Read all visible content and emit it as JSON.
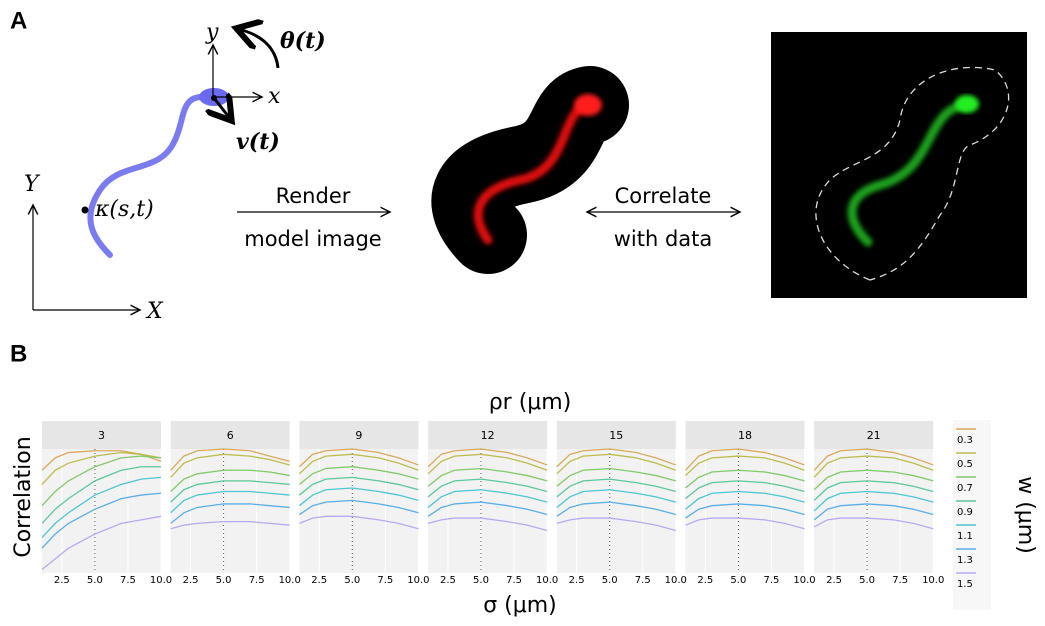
{
  "panel_a": {
    "label": "A",
    "frame_y": "y",
    "frame_x": "x",
    "rotation": "θ(t)",
    "velocity": "v(t)",
    "world_y": "Y",
    "world_x": "X",
    "curvature": "κ(s,t)",
    "render_line1": "Render",
    "render_line2": "model image",
    "correlate_line1": "Correlate",
    "correlate_line2": "with data"
  },
  "chart_data": {
    "type": "line",
    "panel_label": "B",
    "title": "ρr (μm)",
    "y_label": "Correlation",
    "x_label": "σ (μm)",
    "legend_title": "w (μm)",
    "x": [
      1,
      2,
      3,
      5,
      7,
      8.5,
      10
    ],
    "xlim": [
      1,
      10
    ],
    "xticks": [
      2.5,
      {
        "value": 5,
        "label": "5.0"
      },
      7.5,
      {
        "value": 10,
        "label": "10.0"
      }
    ],
    "ylim": [
      0.3,
      1.0
    ],
    "vline": 5,
    "series": [
      {
        "name": "0.3",
        "color": "#d9a95b"
      },
      {
        "name": "0.5",
        "color": "#bcbc4d"
      },
      {
        "name": "0.7",
        "color": "#82c96a"
      },
      {
        "name": "0.9",
        "color": "#5cc79a"
      },
      {
        "name": "1.1",
        "color": "#4cc7d0"
      },
      {
        "name": "1.3",
        "color": "#5aaee6"
      },
      {
        "name": "1.5",
        "color": "#b9a8f0"
      }
    ],
    "facets": [
      {
        "title": "3",
        "series": [
          {
            "values": [
              0.88,
              0.95,
              0.98,
              0.99,
              0.99,
              0.97,
              0.93
            ]
          },
          {
            "values": [
              0.8,
              0.88,
              0.92,
              0.96,
              0.98,
              0.97,
              0.95
            ]
          },
          {
            "values": [
              0.68,
              0.76,
              0.82,
              0.9,
              0.95,
              0.96,
              0.95
            ]
          },
          {
            "values": [
              0.58,
              0.66,
              0.72,
              0.82,
              0.88,
              0.9,
              0.9
            ]
          },
          {
            "values": [
              0.5,
              0.58,
              0.64,
              0.74,
              0.8,
              0.83,
              0.84
            ]
          },
          {
            "values": [
              0.44,
              0.52,
              0.58,
              0.66,
              0.72,
              0.74,
              0.75
            ]
          },
          {
            "values": [
              0.32,
              0.38,
              0.44,
              0.52,
              0.58,
              0.6,
              0.62
            ]
          }
        ]
      },
      {
        "title": "6",
        "series": [
          {
            "values": [
              0.88,
              0.96,
              0.99,
              1.0,
              0.99,
              0.96,
              0.93
            ]
          },
          {
            "values": [
              0.84,
              0.92,
              0.95,
              0.97,
              0.96,
              0.94,
              0.91
            ]
          },
          {
            "values": [
              0.76,
              0.83,
              0.86,
              0.88,
              0.88,
              0.87,
              0.85
            ]
          },
          {
            "values": [
              0.7,
              0.77,
              0.8,
              0.82,
              0.82,
              0.81,
              0.8
            ]
          },
          {
            "values": [
              0.64,
              0.71,
              0.74,
              0.76,
              0.76,
              0.75,
              0.74
            ]
          },
          {
            "values": [
              0.58,
              0.64,
              0.67,
              0.69,
              0.69,
              0.68,
              0.67
            ]
          },
          {
            "values": [
              0.55,
              0.57,
              0.58,
              0.59,
              0.59,
              0.58,
              0.57
            ]
          }
        ]
      },
      {
        "title": "9",
        "series": [
          {
            "values": [
              0.9,
              0.97,
              0.99,
              1.0,
              0.98,
              0.95,
              0.91
            ]
          },
          {
            "values": [
              0.86,
              0.93,
              0.96,
              0.97,
              0.95,
              0.92,
              0.88
            ]
          },
          {
            "values": [
              0.8,
              0.86,
              0.89,
              0.9,
              0.88,
              0.86,
              0.83
            ]
          },
          {
            "values": [
              0.74,
              0.8,
              0.83,
              0.84,
              0.82,
              0.8,
              0.77
            ]
          },
          {
            "values": [
              0.68,
              0.74,
              0.77,
              0.78,
              0.76,
              0.74,
              0.71
            ]
          },
          {
            "values": [
              0.63,
              0.68,
              0.7,
              0.71,
              0.69,
              0.67,
              0.64
            ]
          },
          {
            "values": [
              0.58,
              0.61,
              0.62,
              0.62,
              0.6,
              0.58,
              0.55
            ]
          }
        ]
      },
      {
        "title": "12",
        "series": [
          {
            "values": [
              0.9,
              0.97,
              0.99,
              1.0,
              0.98,
              0.95,
              0.91
            ]
          },
          {
            "values": [
              0.86,
              0.93,
              0.96,
              0.97,
              0.95,
              0.92,
              0.88
            ]
          },
          {
            "values": [
              0.79,
              0.85,
              0.88,
              0.89,
              0.87,
              0.85,
              0.82
            ]
          },
          {
            "values": [
              0.73,
              0.79,
              0.82,
              0.83,
              0.81,
              0.79,
              0.76
            ]
          },
          {
            "values": [
              0.67,
              0.73,
              0.76,
              0.77,
              0.75,
              0.73,
              0.7
            ]
          },
          {
            "values": [
              0.62,
              0.67,
              0.69,
              0.7,
              0.68,
              0.66,
              0.63
            ]
          },
          {
            "values": [
              0.58,
              0.6,
              0.61,
              0.61,
              0.59,
              0.57,
              0.54
            ]
          }
        ]
      },
      {
        "title": "15",
        "series": [
          {
            "values": [
              0.9,
              0.97,
              0.99,
              1.0,
              0.98,
              0.95,
              0.91
            ]
          },
          {
            "values": [
              0.86,
              0.93,
              0.96,
              0.97,
              0.95,
              0.92,
              0.88
            ]
          },
          {
            "values": [
              0.79,
              0.85,
              0.88,
              0.89,
              0.87,
              0.85,
              0.82
            ]
          },
          {
            "values": [
              0.73,
              0.79,
              0.82,
              0.83,
              0.81,
              0.79,
              0.76
            ]
          },
          {
            "values": [
              0.67,
              0.73,
              0.76,
              0.77,
              0.75,
              0.73,
              0.7
            ]
          },
          {
            "values": [
              0.62,
              0.67,
              0.69,
              0.7,
              0.68,
              0.66,
              0.63
            ]
          },
          {
            "values": [
              0.58,
              0.6,
              0.61,
              0.61,
              0.59,
              0.57,
              0.54
            ]
          }
        ]
      },
      {
        "title": "18",
        "series": [
          {
            "values": [
              0.88,
              0.96,
              0.99,
              1.0,
              0.98,
              0.95,
              0.91
            ]
          },
          {
            "values": [
              0.85,
              0.92,
              0.95,
              0.96,
              0.95,
              0.92,
              0.88
            ]
          },
          {
            "values": [
              0.78,
              0.84,
              0.87,
              0.88,
              0.87,
              0.85,
              0.82
            ]
          },
          {
            "values": [
              0.72,
              0.78,
              0.81,
              0.82,
              0.81,
              0.79,
              0.76
            ]
          },
          {
            "values": [
              0.66,
              0.72,
              0.75,
              0.76,
              0.75,
              0.73,
              0.7
            ]
          },
          {
            "values": [
              0.61,
              0.66,
              0.68,
              0.69,
              0.68,
              0.66,
              0.63
            ]
          },
          {
            "values": [
              0.57,
              0.6,
              0.61,
              0.61,
              0.6,
              0.58,
              0.55
            ]
          }
        ]
      },
      {
        "title": "21",
        "series": [
          {
            "values": [
              0.88,
              0.96,
              0.99,
              1.0,
              0.98,
              0.95,
              0.91
            ]
          },
          {
            "values": [
              0.84,
              0.92,
              0.95,
              0.96,
              0.95,
              0.92,
              0.88
            ]
          },
          {
            "values": [
              0.77,
              0.84,
              0.87,
              0.88,
              0.87,
              0.85,
              0.82
            ]
          },
          {
            "values": [
              0.71,
              0.78,
              0.81,
              0.82,
              0.81,
              0.79,
              0.76
            ]
          },
          {
            "values": [
              0.65,
              0.72,
              0.75,
              0.76,
              0.75,
              0.73,
              0.7
            ]
          },
          {
            "values": [
              0.6,
              0.66,
              0.68,
              0.69,
              0.68,
              0.66,
              0.63
            ]
          },
          {
            "values": [
              0.56,
              0.6,
              0.61,
              0.61,
              0.6,
              0.58,
              0.55
            ]
          }
        ]
      }
    ]
  }
}
